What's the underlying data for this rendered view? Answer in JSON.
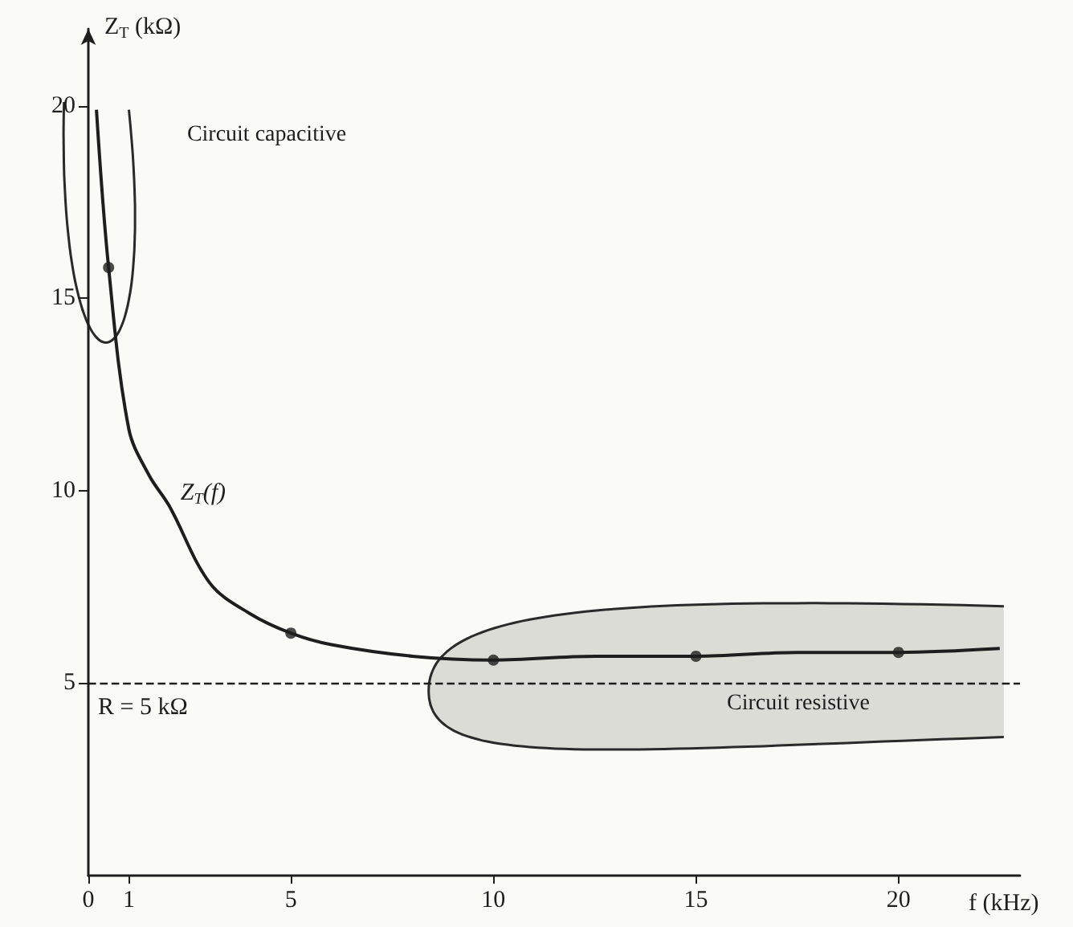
{
  "chart_data": {
    "type": "line",
    "xlabel": "f (kHz)",
    "ylabel": "Z$_{T}$ (kΩ)",
    "xlim": [
      0,
      23
    ],
    "xticks": [
      0,
      1,
      5,
      10,
      15,
      20
    ],
    "ylim": [
      0,
      22
    ],
    "yticks": [
      5,
      10,
      15,
      20
    ],
    "grid": false,
    "legend": false,
    "series": [
      {
        "name": "Z$_{T}$(f)",
        "color": "#1e1e1e",
        "marker": "none",
        "line_style": "solid",
        "x": [
          0.2,
          0.5,
          1,
          1.5,
          2,
          3,
          4,
          5,
          6,
          8,
          10,
          12.5,
          15,
          17.5,
          20,
          22.5
        ],
        "values": [
          19.9,
          15.8,
          11.6,
          10.4,
          9.6,
          7.6,
          6.8,
          6.3,
          6.0,
          5.7,
          5.6,
          5.7,
          5.7,
          5.8,
          5.8,
          5.9
        ]
      },
      {
        "type": "scatter",
        "color": "#1e1e1e",
        "marker": "circle",
        "x": [
          0.5,
          5,
          10,
          15,
          20
        ],
        "values": [
          15.8,
          6.3,
          5.6,
          5.7,
          5.8
        ]
      }
    ],
    "ref_lines": [
      {
        "axis": "y",
        "value": 5,
        "label": "R = 5 kΩ",
        "color": "#1e1e1e",
        "line_style": "dashed"
      }
    ],
    "annotations": [
      "Circuit capacitive",
      "Circuit resistive"
    ]
  }
}
